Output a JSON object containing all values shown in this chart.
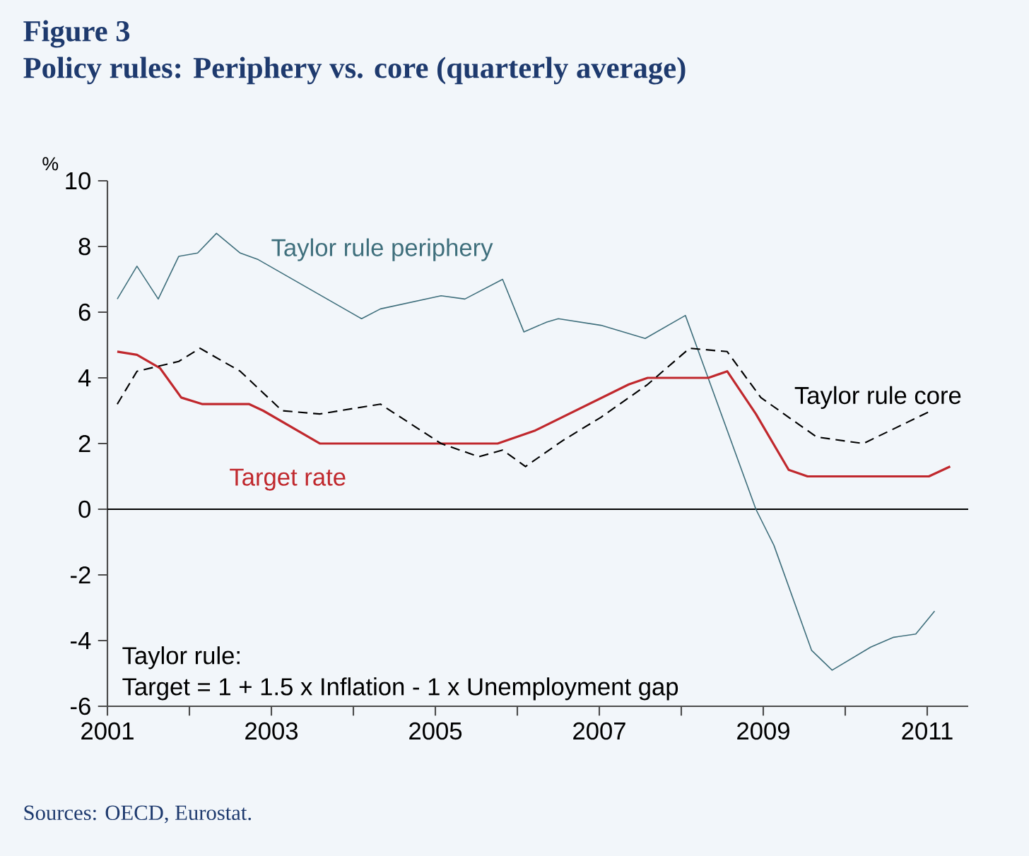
{
  "chart_data": {
    "type": "line",
    "title": "Figure 3",
    "subtitle": "Policy rules: Periphery vs. core (quarterly average)",
    "ylabel": "%",
    "xlim": [
      2001,
      2011.5
    ],
    "xticks": [
      2001,
      {
        "value": 2002,
        "label": null
      },
      2003,
      {
        "value": 2004,
        "label": null
      },
      2005,
      {
        "value": 2006,
        "label": null
      },
      2007,
      {
        "value": 2008,
        "label": null
      },
      2009,
      {
        "value": 2010,
        "label": null
      },
      2011
    ],
    "ylim": [
      -6,
      10
    ],
    "yticks": [
      -6,
      -4,
      -2,
      0,
      2,
      4,
      6,
      8,
      10
    ],
    "grid": false,
    "series": [
      {
        "name": "Taylor rule periphery",
        "color": "#3f6f7c",
        "line_style": "solid",
        "x": [
          2001.12,
          2001.36,
          2001.62,
          2001.87,
          2002.1,
          2002.33,
          2002.62,
          2002.84,
          2004.1,
          2004.33,
          2005.07,
          2005.36,
          2005.82,
          2006.08,
          2006.36,
          2006.5,
          2007.02,
          2007.56,
          2008.05,
          2008.91,
          2009.13,
          2009.59,
          2009.84,
          2010.31,
          2010.59,
          2010.86,
          2011.09
        ],
        "values": [
          6.4,
          7.4,
          6.4,
          7.7,
          7.8,
          8.4,
          7.8,
          7.6,
          5.8,
          6.1,
          6.5,
          6.4,
          7.0,
          5.4,
          5.7,
          5.8,
          5.6,
          5.2,
          5.9,
          0,
          -1.1,
          -4.3,
          -4.9,
          -4.2,
          -3.9,
          -3.8,
          -3.1
        ]
      },
      {
        "name": "Target rate",
        "color": "#c0282d",
        "line_style": "solid",
        "x": [
          2001.12,
          2001.36,
          2001.64,
          2001.9,
          2002.16,
          2002.73,
          2002.9,
          2003.59,
          2005.76,
          2006.22,
          2007.36,
          2007.59,
          2008.33,
          2008.56,
          2008.91,
          2009.31,
          2009.54,
          2011.02,
          2011.28
        ],
        "values": [
          4.8,
          4.7,
          4.3,
          3.4,
          3.2,
          3.2,
          3.0,
          2.0,
          2.0,
          2.4,
          3.8,
          4.0,
          4.0,
          4.2,
          2.9,
          1.2,
          1.0,
          1.0,
          1.3
        ]
      },
      {
        "name": "Taylor rule core",
        "color": "#000000",
        "line_style": "dashed",
        "x": [
          2001.12,
          2001.36,
          2001.87,
          2002.13,
          2002.62,
          2003.13,
          2003.59,
          2004.33,
          2005.07,
          2005.53,
          2005.82,
          2006.1,
          2006.56,
          2007.02,
          2007.59,
          2008.1,
          2008.56,
          2008.97,
          2009.31,
          2009.65,
          2010.22,
          2011.05
        ],
        "values": [
          3.2,
          4.2,
          4.5,
          4.9,
          4.2,
          3.0,
          2.9,
          3.2,
          2.0,
          1.6,
          1.8,
          1.3,
          2.1,
          2.8,
          3.8,
          4.9,
          4.8,
          3.4,
          2.8,
          2.2,
          2.0,
          3.0
        ]
      }
    ],
    "ref_lines": [
      {
        "axis": "y",
        "value": 0,
        "color": "#000000"
      }
    ],
    "annotations": [
      "Taylor rule:",
      "Target = 1 + 1.5 x Inflation - 1 x Unemployment gap",
      "Sources: OECD, Eurostat."
    ]
  }
}
